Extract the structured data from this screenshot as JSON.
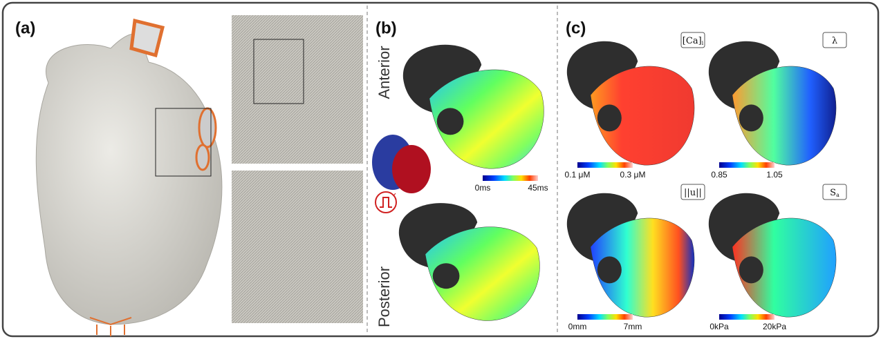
{
  "panels": [
    {
      "label": "(a)"
    },
    {
      "label": "(b)",
      "views": [
        "Anterior",
        "Posterior"
      ],
      "colorbar": {
        "min": "0ms",
        "max": "45ms"
      }
    },
    {
      "label": "(c)",
      "maps": [
        {
          "symbol": "[Ca]",
          "subscript": "i",
          "min": "0.1 μM",
          "max": "0.3 μM"
        },
        {
          "symbol": "λ",
          "subscript": null,
          "min": "0.85",
          "max": "1.05"
        },
        {
          "symbol": "||u||",
          "subscript": null,
          "min": "0mm",
          "max": "7mm"
        },
        {
          "symbol": "S",
          "subscript": "a",
          "min": "0kPa",
          "max": "20kPa"
        }
      ]
    }
  ]
}
